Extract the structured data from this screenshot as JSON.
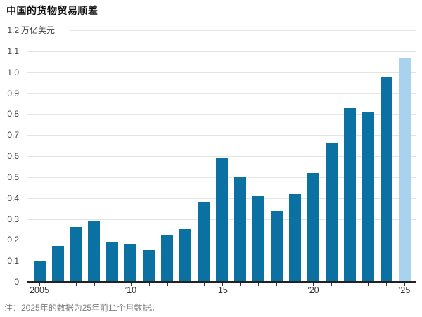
{
  "chart_data": {
    "type": "bar",
    "title": "中国的货物贸易顺差",
    "unit_label": "万亿美元",
    "note": "注：2025年的数据为25年前11个月数据。",
    "categories": [
      "2005",
      "2006",
      "2007",
      "2008",
      "2009",
      "2010",
      "2011",
      "2012",
      "2013",
      "2014",
      "2015",
      "2016",
      "2017",
      "2018",
      "2019",
      "2020",
      "2021",
      "2022",
      "2023",
      "2024",
      "2025"
    ],
    "values": [
      0.1,
      0.17,
      0.26,
      0.29,
      0.19,
      0.18,
      0.15,
      0.22,
      0.25,
      0.38,
      0.59,
      0.5,
      0.41,
      0.34,
      0.42,
      0.52,
      0.66,
      0.83,
      0.81,
      0.98,
      1.07
    ],
    "highlight_index": 20,
    "ylim": [
      0,
      1.2
    ],
    "y_tick_labels": [
      "0",
      "0.1",
      "0.2",
      "0.3",
      "0.4",
      "0.5",
      "0.6",
      "0.7",
      "0.8",
      "0.9",
      "1.0",
      "1.1",
      "1.2"
    ],
    "x_ticks": [
      {
        "index": 0,
        "label": "2005"
      },
      {
        "index": 5,
        "label": "’10"
      },
      {
        "index": 10,
        "label": "’15"
      },
      {
        "index": 15,
        "label": "’20"
      },
      {
        "index": 20,
        "label": "’25"
      }
    ],
    "grid": true,
    "legend": null,
    "colors": {
      "bar": "#0b70a2",
      "highlight_bar": "#a8d3ee",
      "gridline": "#e4e4e4",
      "axis": "#222222",
      "tick_label": "#444444",
      "note_text": "#7f7f7f",
      "title_text": "#111111"
    }
  }
}
